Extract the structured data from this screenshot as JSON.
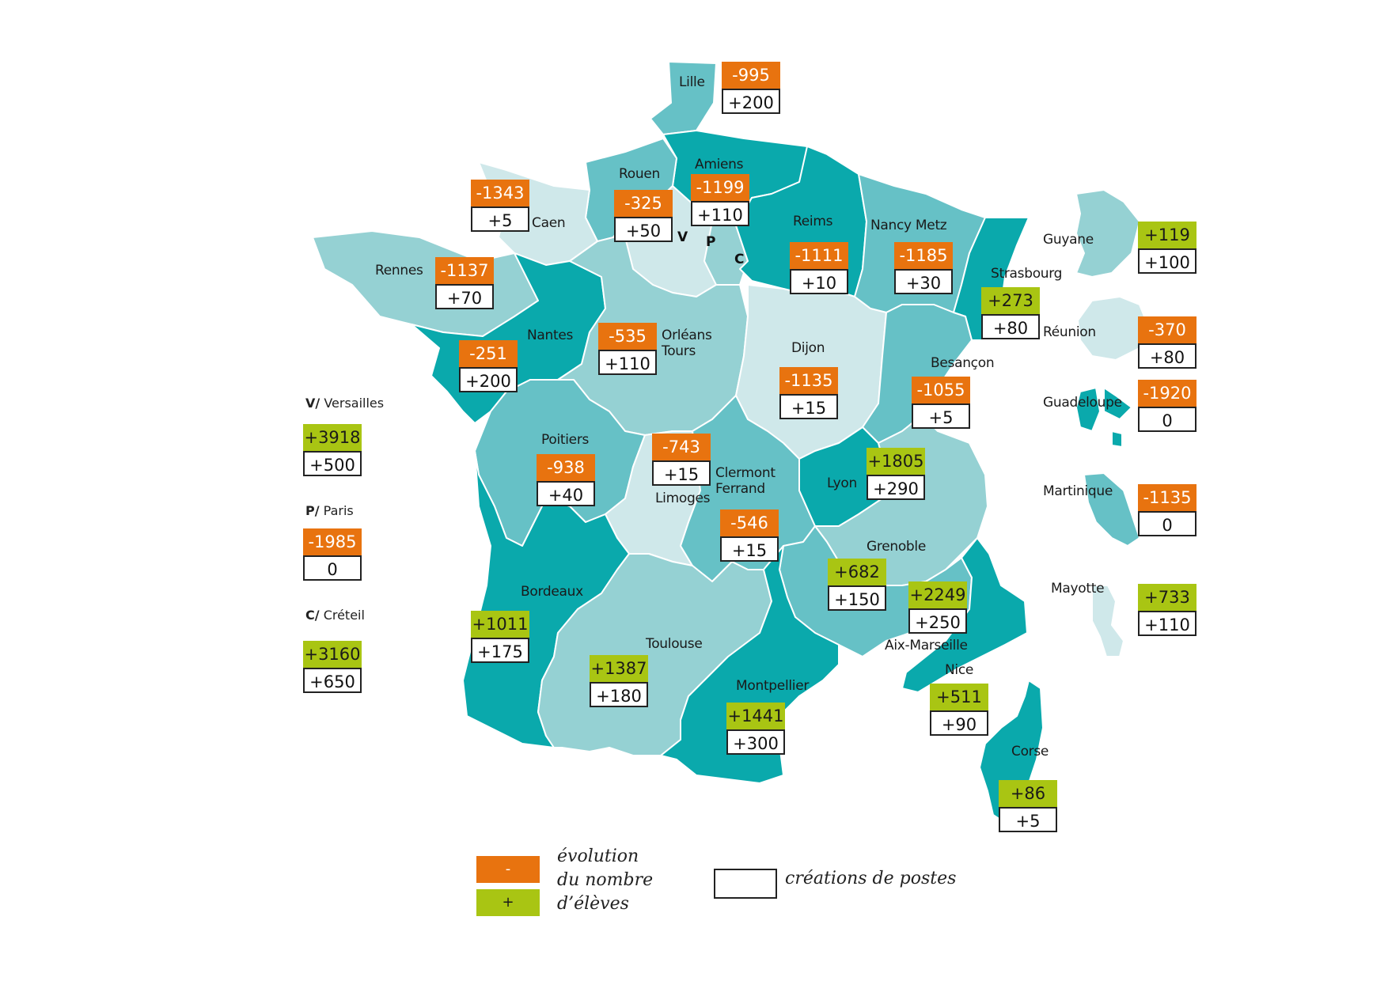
{
  "regions": {
    "lille": {
      "name": "Lille",
      "evolution": "-995",
      "postes": "+200",
      "sign": "neg"
    },
    "amiens": {
      "name": "Amiens",
      "evolution": "-1199",
      "postes": "+110",
      "sign": "neg"
    },
    "rouen": {
      "name": "Rouen",
      "evolution": "-325",
      "postes": "+50",
      "sign": "neg"
    },
    "caen": {
      "name": "Caen",
      "evolution": "-1343",
      "postes": "+5",
      "sign": "neg"
    },
    "reims": {
      "name": "Reims",
      "evolution": "-1111",
      "postes": "+10",
      "sign": "neg"
    },
    "nancy": {
      "name": "Nancy Metz",
      "evolution": "-1185",
      "postes": "+30",
      "sign": "neg"
    },
    "strasbourg": {
      "name": "Strasbourg",
      "evolution": "+273",
      "postes": "+80",
      "sign": "pos"
    },
    "rennes": {
      "name": "Rennes",
      "evolution": "-1137",
      "postes": "+70",
      "sign": "neg"
    },
    "nantes": {
      "name": "Nantes",
      "evolution": "-251",
      "postes": "+200",
      "sign": "neg"
    },
    "orleans": {
      "name": "Orléans\nTours",
      "evolution": "-535",
      "postes": "+110",
      "sign": "neg"
    },
    "dijon": {
      "name": "Dijon",
      "evolution": "-1135",
      "postes": "+15",
      "sign": "neg"
    },
    "besancon": {
      "name": "Besançon",
      "evolution": "-1055",
      "postes": "+5",
      "sign": "neg"
    },
    "poitiers": {
      "name": "Poitiers",
      "evolution": "-938",
      "postes": "+40",
      "sign": "neg"
    },
    "limoges": {
      "name": "Limoges",
      "evolution": "-743",
      "postes": "+15",
      "sign": "neg"
    },
    "clermont": {
      "name": "Clermont\nFerrand",
      "evolution": "-546",
      "postes": "+15",
      "sign": "neg"
    },
    "lyon": {
      "name": "Lyon",
      "evolution": "+1805",
      "postes": "+290",
      "sign": "pos"
    },
    "grenoble": {
      "name": "Grenoble",
      "evolution": "+682",
      "postes": "+150",
      "sign": "pos"
    },
    "aix": {
      "name": "Aix-Marseille",
      "evolution": "+2249",
      "postes": "+250",
      "sign": "pos"
    },
    "bordeaux": {
      "name": "Bordeaux",
      "evolution": "+1011",
      "postes": "+175",
      "sign": "pos"
    },
    "toulouse": {
      "name": "Toulouse",
      "evolution": "+1387",
      "postes": "+180",
      "sign": "pos"
    },
    "montpellier": {
      "name": "Montpellier",
      "evolution": "+1441",
      "postes": "+300",
      "sign": "pos"
    },
    "nice": {
      "name": "Nice",
      "evolution": "+511",
      "postes": "+90",
      "sign": "pos"
    },
    "corse": {
      "name": "Corse",
      "evolution": "+86",
      "postes": "+5",
      "sign": "pos"
    },
    "guyane": {
      "name": "Guyane",
      "evolution": "+119",
      "postes": "+100",
      "sign": "pos"
    },
    "reunion": {
      "name": "Réunion",
      "evolution": "-370",
      "postes": "+80",
      "sign": "neg"
    },
    "guadeloupe": {
      "name": "Guadeloupe",
      "evolution": "-1920",
      "postes": "0",
      "sign": "neg"
    },
    "martinique": {
      "name": "Martinique",
      "evolution": "-1135",
      "postes": "0",
      "sign": "neg"
    },
    "mayotte": {
      "name": "Mayotte",
      "evolution": "+733",
      "postes": "+110",
      "sign": "pos"
    }
  },
  "idf": {
    "markers": {
      "v": "V",
      "p": "P",
      "c": "C"
    },
    "versailles": {
      "letter": "V",
      "slash": "/",
      "name": "Versailles",
      "evolution": "+3918",
      "postes": "+500",
      "sign": "pos"
    },
    "paris": {
      "letter": "P",
      "slash": "/",
      "name": "Paris",
      "evolution": "-1985",
      "postes": "0",
      "sign": "neg"
    },
    "creteil": {
      "letter": "C",
      "slash": "/",
      "name": "Créteil",
      "evolution": "+3160",
      "postes": "+650",
      "sign": "pos"
    }
  },
  "legend": {
    "minus": "-",
    "plus": "+",
    "evolution_line1": "évolution",
    "evolution_line2": "du nombre",
    "evolution_line3": "d’élèves",
    "creations": "créations de postes"
  },
  "colors": {
    "negative": "#e8730f",
    "positive": "#a9c513",
    "dark_teal": "#0aa9ac",
    "mid_teal": "#66c1c6",
    "light_teal": "#95d1d3",
    "pale_teal": "#cfe8ea"
  }
}
